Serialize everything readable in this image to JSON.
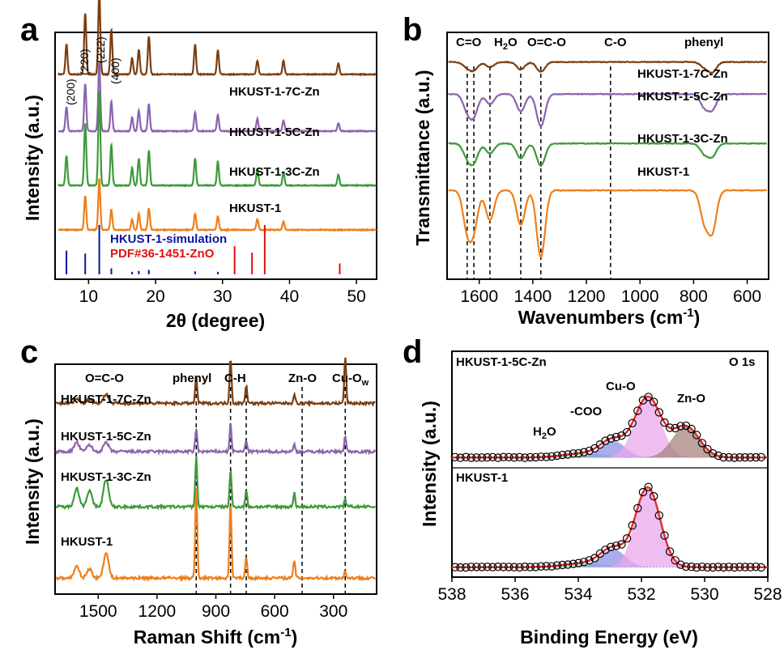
{
  "colors": {
    "brown": "#7B3E10",
    "purple": "#8B63B0",
    "green": "#3E9A3A",
    "orange": "#F07E1A",
    "blue": "#0A14A0",
    "red": "#E01010",
    "fit": "#E23030",
    "magenta_fill": "#EBA7EB",
    "blue_fill": "#8E90E6",
    "brown_fill": "#A7847A",
    "green_fill": "#9EE29E"
  },
  "chart_data": [
    {
      "panel": "a",
      "type": "line",
      "xlabel": "2θ (degree)",
      "ylabel": "Intensity (a.u.)",
      "xlim": [
        5,
        53
      ],
      "xticks": [
        10,
        20,
        30,
        40,
        50
      ],
      "peak_labels": [
        "(200)",
        "(220)",
        "(222)",
        "(400)"
      ],
      "series": [
        {
          "name": "HKUST-1-7C-Zn",
          "color": "#7B3E10",
          "baseline": 0.83,
          "peaks": [
            [
              6.7,
              0.22
            ],
            [
              9.5,
              0.45
            ],
            [
              11.6,
              0.62
            ],
            [
              13.4,
              0.33
            ],
            [
              16.5,
              0.12
            ],
            [
              17.5,
              0.18
            ],
            [
              19.0,
              0.28
            ],
            [
              25.9,
              0.22
            ],
            [
              29.3,
              0.18
            ],
            [
              35.2,
              0.1
            ],
            [
              39.1,
              0.1
            ],
            [
              47.3,
              0.08
            ]
          ]
        },
        {
          "name": "HKUST-1-5C-Zn",
          "color": "#8B63B0",
          "baseline": 0.6,
          "peaks": [
            [
              6.7,
              0.18
            ],
            [
              9.5,
              0.35
            ],
            [
              11.6,
              0.52
            ],
            [
              13.4,
              0.22
            ],
            [
              16.5,
              0.1
            ],
            [
              17.5,
              0.15
            ],
            [
              19.0,
              0.2
            ],
            [
              25.9,
              0.14
            ],
            [
              29.3,
              0.12
            ],
            [
              35.2,
              0.09
            ],
            [
              39.1,
              0.08
            ],
            [
              47.3,
              0.06
            ]
          ]
        },
        {
          "name": "HKUST-1-3C-Zn",
          "color": "#3E9A3A",
          "baseline": 0.38,
          "peaks": [
            [
              6.7,
              0.22
            ],
            [
              9.5,
              0.46
            ],
            [
              11.6,
              0.7
            ],
            [
              13.4,
              0.3
            ],
            [
              16.5,
              0.13
            ],
            [
              17.5,
              0.2
            ],
            [
              19.0,
              0.26
            ],
            [
              25.9,
              0.2
            ],
            [
              29.3,
              0.18
            ],
            [
              35.2,
              0.12
            ],
            [
              39.1,
              0.1
            ],
            [
              47.3,
              0.08
            ]
          ]
        },
        {
          "name": "HKUST-1",
          "color": "#F07E1A",
          "baseline": 0.2,
          "peaks": [
            [
              9.5,
              0.25
            ],
            [
              11.6,
              0.38
            ],
            [
              13.4,
              0.15
            ],
            [
              16.5,
              0.08
            ],
            [
              17.5,
              0.12
            ],
            [
              19.0,
              0.16
            ],
            [
              25.9,
              0.12
            ],
            [
              29.3,
              0.1
            ],
            [
              35.2,
              0.08
            ],
            [
              39.1,
              0.06
            ]
          ]
        }
      ],
      "reference_labels": [
        "HKUST-1-simulation",
        "PDF#36-1451-ZnO"
      ],
      "reference_sim": [
        [
          6.7,
          0.48
        ],
        [
          9.5,
          0.42
        ],
        [
          11.6,
          1.0
        ],
        [
          13.4,
          0.12
        ],
        [
          16.5,
          0.05
        ],
        [
          17.5,
          0.07
        ],
        [
          19.0,
          0.09
        ],
        [
          25.9,
          0.06
        ],
        [
          29.3,
          0.05
        ]
      ],
      "reference_zno": [
        [
          31.8,
          0.57
        ],
        [
          34.4,
          0.44
        ],
        [
          36.3,
          1.0
        ],
        [
          47.5,
          0.22
        ]
      ]
    },
    {
      "panel": "b",
      "type": "line",
      "xlabel": "Wavenumbers (cm⁻¹)",
      "ylabel": "Transmittance (a.u.)",
      "xlim": [
        1720,
        520
      ],
      "xticks": [
        1600,
        1400,
        1200,
        1000,
        800,
        600
      ],
      "band_labels": [
        "C=O",
        "H₂O",
        "O=C-O",
        "C-O",
        "phenyl"
      ],
      "band_positions": [
        1645,
        1620,
        1560,
        1445,
        1370,
        1110
      ],
      "series": [
        {
          "name": "HKUST-1-7C-Zn",
          "color": "#7B3E10",
          "baseline": 0.88,
          "bands": [
            [
              1645,
              0.02
            ],
            [
              1620,
              0.03
            ],
            [
              1560,
              0.02
            ],
            [
              1445,
              0.03
            ],
            [
              1370,
              0.04
            ],
            [
              760,
              0.02
            ],
            [
              730,
              0.04
            ]
          ]
        },
        {
          "name": "HKUST-1-5C-Zn",
          "color": "#8B63B0",
          "baseline": 0.75,
          "bands": [
            [
              1645,
              0.06
            ],
            [
              1620,
              0.08
            ],
            [
              1560,
              0.04
            ],
            [
              1445,
              0.07
            ],
            [
              1370,
              0.13
            ],
            [
              760,
              0.05
            ],
            [
              730,
              0.06
            ]
          ]
        },
        {
          "name": "HKUST-1-3C-Zn",
          "color": "#3E9A3A",
          "baseline": 0.55,
          "bands": [
            [
              1645,
              0.05
            ],
            [
              1620,
              0.07
            ],
            [
              1560,
              0.04
            ],
            [
              1445,
              0.06
            ],
            [
              1370,
              0.09
            ],
            [
              760,
              0.04
            ],
            [
              730,
              0.05
            ]
          ]
        },
        {
          "name": "HKUST-1",
          "color": "#F07E1A",
          "baseline": 0.36,
          "bands": [
            [
              1645,
              0.15
            ],
            [
              1620,
              0.14
            ],
            [
              1560,
              0.12
            ],
            [
              1445,
              0.14
            ],
            [
              1370,
              0.27
            ],
            [
              760,
              0.12
            ],
            [
              730,
              0.16
            ]
          ]
        }
      ]
    },
    {
      "panel": "c",
      "type": "line",
      "xlabel": "Raman Shift (cm⁻¹)",
      "ylabel": "Intensity (a.u.)",
      "xlim": [
        1720,
        80
      ],
      "xticks": [
        1500,
        1200,
        900,
        600,
        300
      ],
      "band_labels": [
        "O=C-O",
        "phenyl",
        "C-H",
        "Zn-O",
        "Cu-O"
      ],
      "band_positions": [
        1000,
        825,
        745,
        460,
        240
      ],
      "series": [
        {
          "name": "HKUST-1-7C-Zn",
          "color": "#7B3E10",
          "baseline": 0.83,
          "peaks": [
            [
              1610,
              0.02
            ],
            [
              1545,
              0.02
            ],
            [
              1460,
              0.04
            ],
            [
              1000,
              0.12
            ],
            [
              825,
              0.2
            ],
            [
              745,
              0.08
            ],
            [
              500,
              0.04
            ],
            [
              240,
              0.2
            ]
          ]
        },
        {
          "name": "HKUST-1-5C-Zn",
          "color": "#8B63B0",
          "baseline": 0.62,
          "peaks": [
            [
              1610,
              0.04
            ],
            [
              1545,
              0.03
            ],
            [
              1460,
              0.04
            ],
            [
              1000,
              0.1
            ],
            [
              825,
              0.12
            ],
            [
              745,
              0.05
            ],
            [
              500,
              0.03
            ],
            [
              240,
              0.07
            ]
          ]
        },
        {
          "name": "HKUST-1-3C-Zn",
          "color": "#3E9A3A",
          "baseline": 0.38,
          "peaks": [
            [
              1610,
              0.08
            ],
            [
              1545,
              0.07
            ],
            [
              1460,
              0.12
            ],
            [
              1000,
              0.22
            ],
            [
              825,
              0.16
            ],
            [
              745,
              0.07
            ],
            [
              500,
              0.06
            ],
            [
              240,
              0.03
            ]
          ]
        },
        {
          "name": "HKUST-1",
          "color": "#F07E1A",
          "baseline": 0.07,
          "peaks": [
            [
              1610,
              0.05
            ],
            [
              1545,
              0.04
            ],
            [
              1460,
              0.11
            ],
            [
              1000,
              0.4
            ],
            [
              825,
              0.34
            ],
            [
              745,
              0.09
            ],
            [
              500,
              0.08
            ],
            [
              240,
              0.03
            ]
          ]
        }
      ]
    },
    {
      "panel": "d",
      "type": "scatter",
      "xlabel": "Binding Energy (eV)",
      "ylabel": "Intensity (a.u.)",
      "xlim": [
        538,
        528
      ],
      "xticks": [
        538,
        536,
        534,
        532,
        530,
        528
      ],
      "top": {
        "sample": "HKUST-1-5C-Zn",
        "region": "O 1s",
        "components": [
          {
            "name": "H₂O",
            "center": 533.8,
            "height": 0.04,
            "width": 0.9,
            "color": "#9EE29E"
          },
          {
            "name": "-COO",
            "center": 532.9,
            "height": 0.16,
            "width": 0.55,
            "color": "#8E90E6"
          },
          {
            "name": "Cu-O",
            "center": 531.8,
            "height": 0.58,
            "width": 0.58,
            "color": "#EBA7EB"
          },
          {
            "name": "Zn-O",
            "center": 530.6,
            "height": 0.3,
            "width": 0.6,
            "color": "#A7847A"
          }
        ]
      },
      "bottom": {
        "sample": "HKUST-1",
        "components": [
          {
            "name": "H₂O",
            "center": 533.8,
            "height": 0.04,
            "width": 0.9,
            "color": "#9EE29E"
          },
          {
            "name": "-COO",
            "center": 532.9,
            "height": 0.18,
            "width": 0.55,
            "color": "#8E90E6"
          },
          {
            "name": "Cu-O",
            "center": 531.8,
            "height": 0.8,
            "width": 0.55,
            "color": "#EBA7EB"
          }
        ]
      }
    }
  ],
  "texts": {
    "a": {
      "letter": "a",
      "ylabel": "Intensity (a.u.)",
      "xlabel": "2θ (degree)",
      "s1": "HKUST-1-7C-Zn",
      "s2": "HKUST-1-5C-Zn",
      "s3": "HKUST-1-3C-Zn",
      "s4": "HKUST-1",
      "ref1": "HKUST-1-simulation",
      "ref2": "PDF#36-1451-ZnO",
      "p1": "(200)",
      "p2": "(220)",
      "p3": "(222)",
      "p4": "(400)",
      "ticks": [
        "10",
        "20",
        "30",
        "40",
        "50"
      ]
    },
    "b": {
      "letter": "b",
      "ylabel": "Transmittance (a.u.)",
      "xlabel_main": "Wavenumbers (cm",
      "xlabel_sup": "-1",
      "xlabel_end": ")",
      "s1": "HKUST-1-7C-Zn",
      "s2": "HKUST-1-5C-Zn",
      "s3": "HKUST-1-3C-Zn",
      "s4": "HKUST-1",
      "b1": "C=O",
      "b2_main": "H",
      "b2_sub": "2",
      "b2_end": "O",
      "b3": "O=C-O",
      "b4": "C-O",
      "b5": "phenyl",
      "ticks": [
        "1600",
        "1400",
        "1200",
        "1000",
        "800",
        "600"
      ]
    },
    "c": {
      "letter": "c",
      "ylabel": "Intensity (a.u.)",
      "xlabel_main": "Raman Shift (cm",
      "xlabel_sup": "-1",
      "xlabel_end": ")",
      "s1": "HKUST-1-7C-Zn",
      "s2": "HKUST-1-5C-Zn",
      "s3": "HKUST-1-3C-Zn",
      "s4": "HKUST-1",
      "b1": "O=C-O",
      "b2": "phenyl",
      "b3": "C-H",
      "b4": "Zn-O",
      "b5_main": "Cu-O",
      "b5_sub": "w",
      "ticks": [
        "1500",
        "1200",
        "900",
        "600",
        "300"
      ]
    },
    "d": {
      "letter": "d",
      "ylabel": "Intensity (a.u.)",
      "xlabel": "Binding Energy (eV)",
      "top_sample": "HKUST-1-5C-Zn",
      "region": "O 1s",
      "bottom_sample": "HKUST-1",
      "c1_main": "H",
      "c1_sub": "2",
      "c1_end": "O",
      "c2": "-COO",
      "c3": "Cu-O",
      "c4": "Zn-O",
      "ticks": [
        "538",
        "536",
        "534",
        "532",
        "530",
        "528"
      ]
    }
  }
}
